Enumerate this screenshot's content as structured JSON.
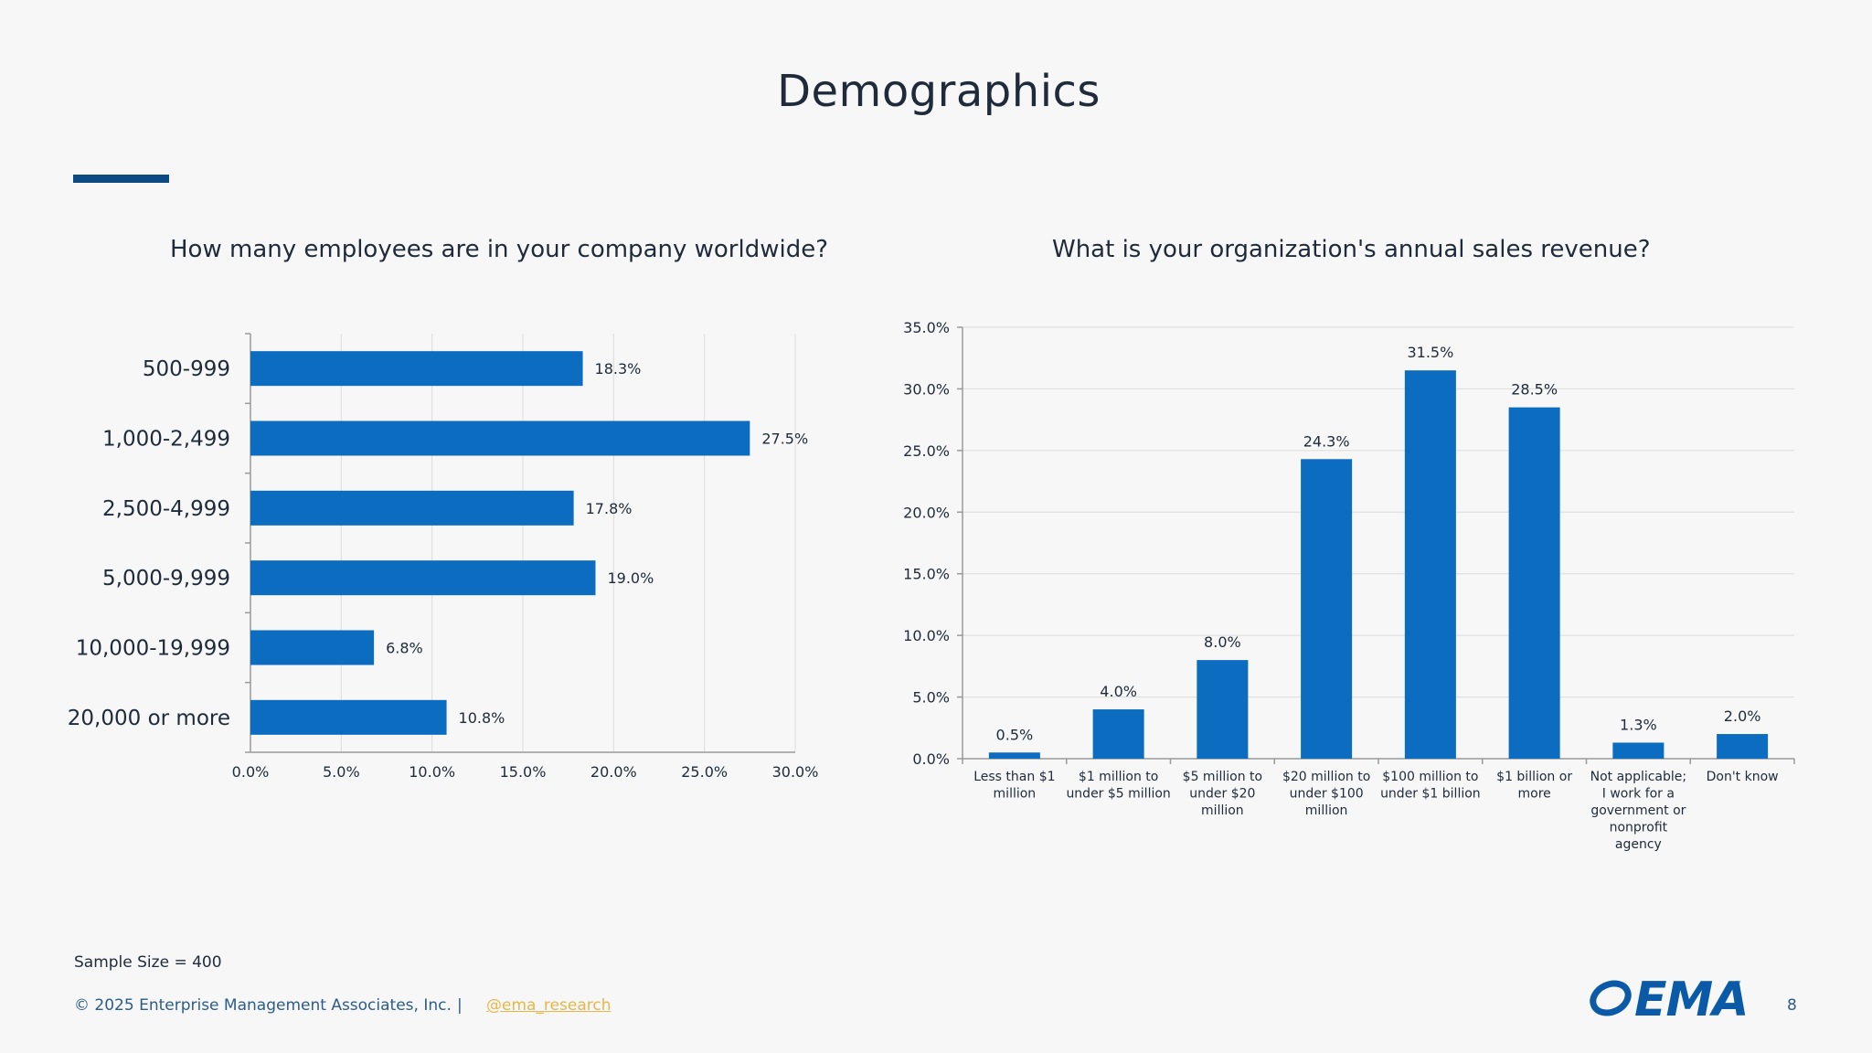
{
  "page": {
    "title": "Demographics",
    "sample_size": "Sample Size = 400",
    "copyright": "© 2025 Enterprise Management Associates, Inc.",
    "separator": "|",
    "link": "@ema_research",
    "page_number": "8",
    "logo_text": "EMA",
    "logo_tm": "™",
    "colors": {
      "bar": "#0b6cc0",
      "accent": "#0c4a84",
      "text": "#1f2a3a",
      "link": "#e8b64a"
    }
  },
  "chart_data": [
    {
      "type": "bar",
      "orientation": "horizontal",
      "title": "How many employees are in your company worldwide?",
      "categories": [
        "500-999",
        "1,000-2,499",
        "2,500-4,999",
        "5,000-9,999",
        "10,000-19,999",
        "20,000 or more"
      ],
      "values": [
        18.3,
        27.5,
        17.8,
        19.0,
        6.8,
        10.8
      ],
      "value_labels": [
        "18.3%",
        "27.5%",
        "17.8%",
        "19.0%",
        "6.8%",
        "10.8%"
      ],
      "xlim": [
        0,
        30
      ],
      "ticks": [
        "0.0%",
        "5.0%",
        "10.0%",
        "15.0%",
        "20.0%",
        "25.0%",
        "30.0%"
      ],
      "grid": true,
      "legend": "none"
    },
    {
      "type": "bar",
      "orientation": "vertical",
      "title": "What is your organization's annual sales revenue?",
      "categories": [
        [
          "Less than $1",
          "million"
        ],
        [
          "$1 million to",
          "under $5 million"
        ],
        [
          "$5 million to",
          "under $20",
          "million"
        ],
        [
          "$20 million to",
          "under $100",
          "million"
        ],
        [
          "$100 million to",
          "under $1 billion"
        ],
        [
          "$1 billion or",
          "more"
        ],
        [
          "Not applicable;",
          "I work for a",
          "government or",
          "nonprofit",
          "agency"
        ],
        [
          "Don't know"
        ]
      ],
      "values": [
        0.5,
        4.0,
        8.0,
        24.3,
        31.5,
        28.5,
        1.3,
        2.0
      ],
      "value_labels": [
        "0.5%",
        "4.0%",
        "8.0%",
        "24.3%",
        "31.5%",
        "28.5%",
        "1.3%",
        "2.0%"
      ],
      "ylim": [
        0,
        35
      ],
      "ticks": [
        "0.0%",
        "5.0%",
        "10.0%",
        "15.0%",
        "20.0%",
        "25.0%",
        "30.0%",
        "35.0%"
      ],
      "grid": true,
      "legend": "none"
    }
  ]
}
